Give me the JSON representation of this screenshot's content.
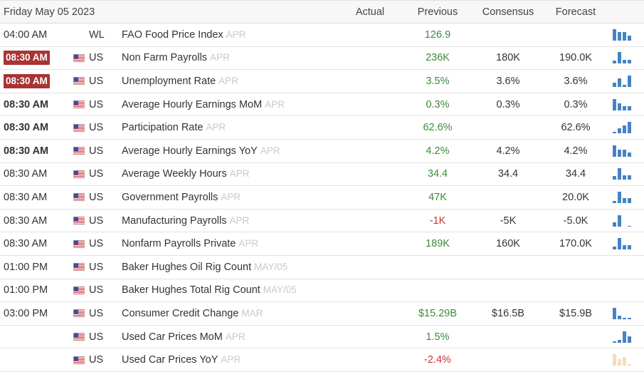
{
  "header": {
    "date": "Friday May 05 2023",
    "actual": "Actual",
    "previous": "Previous",
    "consensus": "Consensus",
    "forecast": "Forecast"
  },
  "events": [
    {
      "time": "04:00 AM",
      "time_badge_color": null,
      "time_bold": false,
      "flag_icon": null,
      "country": "WL",
      "event": "FAO Food Price Index",
      "period": "APR",
      "actual": "",
      "previous": "126.9",
      "previous_color": "#3a8c3a",
      "consensus": "",
      "forecast": "",
      "chart": {
        "color": "#4683c4",
        "bars": [
          1.0,
          0.75,
          0.75,
          0.45
        ]
      }
    },
    {
      "time": "08:30 AM",
      "time_badge_color": "#a83434",
      "time_bold": true,
      "flag_icon": "us-flag-icon",
      "country": "US",
      "event": "Non Farm Payrolls",
      "period": "APR",
      "actual": "",
      "previous": "236K",
      "previous_color": "#3a8c3a",
      "consensus": "180K",
      "forecast": "190.0K",
      "chart": {
        "color": "#4683c4",
        "bars": [
          0.25,
          1.0,
          0.3,
          0.3
        ]
      }
    },
    {
      "time": "08:30 AM",
      "time_badge_color": "#a83434",
      "time_bold": true,
      "flag_icon": "us-flag-icon",
      "country": "US",
      "event": "Unemployment Rate",
      "period": "APR",
      "actual": "",
      "previous": "3.5%",
      "previous_color": "#3a8c3a",
      "consensus": "3.6%",
      "forecast": "3.6%",
      "chart": {
        "color": "#4683c4",
        "bars": [
          0.4,
          0.75,
          0.2,
          1.0
        ]
      }
    },
    {
      "time": "08:30 AM",
      "time_badge_color": null,
      "time_bold": true,
      "flag_icon": "us-flag-icon",
      "country": "US",
      "event": "Average Hourly Earnings MoM",
      "period": "APR",
      "actual": "",
      "previous": "0.3%",
      "previous_color": "#3a8c3a",
      "consensus": "0.3%",
      "forecast": "0.3%",
      "chart": {
        "color": "#4683c4",
        "bars": [
          1.0,
          0.65,
          0.35,
          0.35
        ]
      }
    },
    {
      "time": "08:30 AM",
      "time_badge_color": null,
      "time_bold": true,
      "flag_icon": "us-flag-icon",
      "country": "US",
      "event": "Participation Rate",
      "period": "APR",
      "actual": "",
      "previous": "62.6%",
      "previous_color": "#3a8c3a",
      "consensus": "",
      "forecast": "62.6%",
      "chart": {
        "color": "#4683c4",
        "bars": [
          0.15,
          0.45,
          0.7,
          1.0
        ]
      }
    },
    {
      "time": "08:30 AM",
      "time_badge_color": null,
      "time_bold": true,
      "flag_icon": "us-flag-icon",
      "country": "US",
      "event": "Average Hourly Earnings YoY",
      "period": "APR",
      "actual": "",
      "previous": "4.2%",
      "previous_color": "#3a8c3a",
      "consensus": "4.2%",
      "forecast": "4.2%",
      "chart": {
        "color": "#4683c4",
        "bars": [
          1.0,
          0.6,
          0.6,
          0.4
        ]
      }
    },
    {
      "time": "08:30 AM",
      "time_badge_color": null,
      "time_bold": false,
      "flag_icon": "us-flag-icon",
      "country": "US",
      "event": "Average Weekly Hours",
      "period": "APR",
      "actual": "",
      "previous": "34.4",
      "previous_color": "#3a8c3a",
      "consensus": "34.4",
      "forecast": "34.4",
      "chart": {
        "color": "#4683c4",
        "bars": [
          0.3,
          1.0,
          0.35,
          0.35
        ]
      }
    },
    {
      "time": "08:30 AM",
      "time_badge_color": null,
      "time_bold": false,
      "flag_icon": "us-flag-icon",
      "country": "US",
      "event": "Government Payrolls",
      "period": "APR",
      "actual": "",
      "previous": "47K",
      "previous_color": "#3a8c3a",
      "consensus": "",
      "forecast": "20.0K",
      "chart": {
        "color": "#4683c4",
        "bars": [
          0.2,
          1.0,
          0.45,
          0.45
        ]
      }
    },
    {
      "time": "08:30 AM",
      "time_badge_color": null,
      "time_bold": false,
      "flag_icon": "us-flag-icon",
      "country": "US",
      "event": "Manufacturing Payrolls",
      "period": "APR",
      "actual": "",
      "previous": "-1K",
      "previous_color": "#cc3333",
      "consensus": "-5K",
      "forecast": "-5.0K",
      "chart": {
        "color": "#4683c4",
        "bars": [
          0.4,
          1.0,
          0.0,
          0.08
        ]
      }
    },
    {
      "time": "08:30 AM",
      "time_badge_color": null,
      "time_bold": false,
      "flag_icon": "us-flag-icon",
      "country": "US",
      "event": "Nonfarm Payrolls Private",
      "period": "APR",
      "actual": "",
      "previous": "189K",
      "previous_color": "#3a8c3a",
      "consensus": "160K",
      "forecast": "170.0K",
      "chart": {
        "color": "#4683c4",
        "bars": [
          0.25,
          1.0,
          0.4,
          0.4
        ]
      }
    },
    {
      "time": "01:00 PM",
      "time_badge_color": null,
      "time_bold": false,
      "flag_icon": "us-flag-icon",
      "country": "US",
      "event": "Baker Hughes Oil Rig Count",
      "period": "MAY/05",
      "actual": "",
      "previous": "",
      "previous_color": "#3a8c3a",
      "consensus": "",
      "forecast": "",
      "chart": null
    },
    {
      "time": "01:00 PM",
      "time_badge_color": null,
      "time_bold": false,
      "flag_icon": "us-flag-icon",
      "country": "US",
      "event": "Baker Hughes Total Rig Count",
      "period": "MAY/05",
      "actual": "",
      "previous": "",
      "previous_color": "#3a8c3a",
      "consensus": "",
      "forecast": "",
      "chart": null
    },
    {
      "time": "03:00 PM",
      "time_badge_color": null,
      "time_bold": false,
      "flag_icon": "us-flag-icon",
      "country": "US",
      "event": "Consumer Credit Change",
      "period": "MAR",
      "actual": "",
      "previous": "$15.29B",
      "previous_color": "#3a8c3a",
      "consensus": "$16.5B",
      "forecast": "$15.9B",
      "chart": {
        "color": "#4683c4",
        "bars": [
          1.0,
          0.3,
          0.15,
          0.15
        ]
      }
    },
    {
      "time": "",
      "time_badge_color": null,
      "time_bold": false,
      "flag_icon": "us-flag-icon",
      "country": "US",
      "event": "Used Car Prices MoM",
      "period": "APR",
      "actual": "",
      "previous": "1.5%",
      "previous_color": "#3a8c3a",
      "consensus": "",
      "forecast": "",
      "chart": {
        "color": "#4683c4",
        "bars": [
          0.1,
          0.25,
          1.0,
          0.55
        ]
      }
    },
    {
      "time": "",
      "time_badge_color": null,
      "time_bold": false,
      "flag_icon": "us-flag-icon",
      "country": "US",
      "event": "Used Car Prices YoY",
      "period": "APR",
      "actual": "",
      "previous": "-2.4%",
      "previous_color": "#cc3333",
      "consensus": "",
      "forecast": "",
      "chart": {
        "color": "#f4dfb4",
        "bars": [
          1.0,
          0.55,
          0.75,
          0.15
        ]
      }
    }
  ]
}
